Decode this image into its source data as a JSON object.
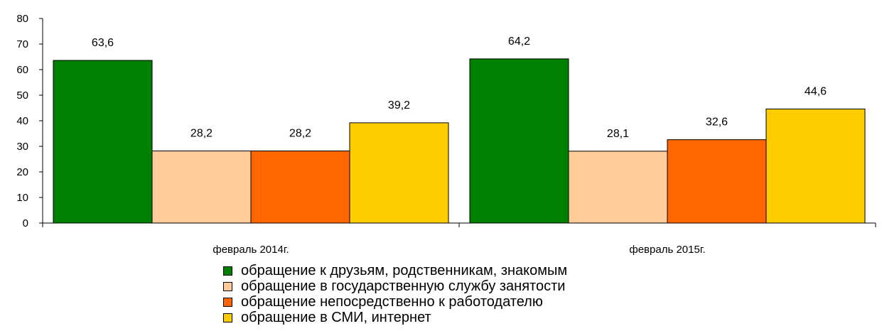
{
  "chart_data": {
    "type": "bar",
    "categories": [
      "февраль 2014г.",
      "февраль 2015г."
    ],
    "series": [
      {
        "name": "обращение к друзьям, родственникам, знакомым",
        "values": [
          63.6,
          64.2
        ],
        "labels": [
          "63,6",
          "64,2"
        ],
        "color": "#008000"
      },
      {
        "name": "обращение в государственную службу занятости",
        "values": [
          28.2,
          28.1
        ],
        "labels": [
          "28,2",
          "28,1"
        ],
        "color": "#FFCC99"
      },
      {
        "name": "обращение непосредственно к работодателю",
        "values": [
          28.2,
          32.6
        ],
        "labels": [
          "28,2",
          "32,6"
        ],
        "color": "#FF6600"
      },
      {
        "name": "обращение в СМИ, интернет",
        "values": [
          39.2,
          44.6
        ],
        "labels": [
          "39,2",
          "44,6"
        ],
        "color": "#FFCC00"
      }
    ],
    "ylim": [
      0,
      80
    ],
    "yticks": [
      0,
      10,
      20,
      30,
      40,
      50,
      60,
      70,
      80
    ],
    "grid": false,
    "legend_position": "bottom"
  }
}
